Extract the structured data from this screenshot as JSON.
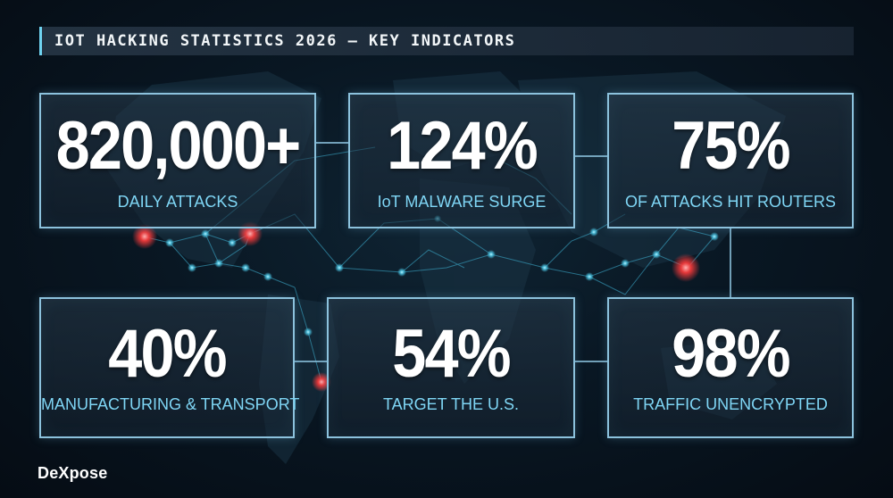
{
  "header": {
    "title": "IOT HACKING STATISTICS 2026 — KEY INDICATORS"
  },
  "cards": [
    {
      "value": "820,000+",
      "label": "DAILY ATTACKS"
    },
    {
      "value": "124%",
      "label": "IoT MALWARE SURGE"
    },
    {
      "value": "75%",
      "label": "OF ATTACKS HIT ROUTERS"
    },
    {
      "value": "40%",
      "label": "MANUFACTURING & TRANSPORT"
    },
    {
      "value": "54%",
      "label": "TARGET THE U.S."
    },
    {
      "value": "98%",
      "label": "TRAFFIC UNENCRYPTED"
    }
  ],
  "brand": {
    "name": "DeXpose"
  },
  "colors": {
    "accent": "#6fd3f0",
    "label": "#7fd6f5",
    "card_border": "#8cc2dd",
    "hotspot": "#ff3b3b",
    "background": "#07121c"
  }
}
